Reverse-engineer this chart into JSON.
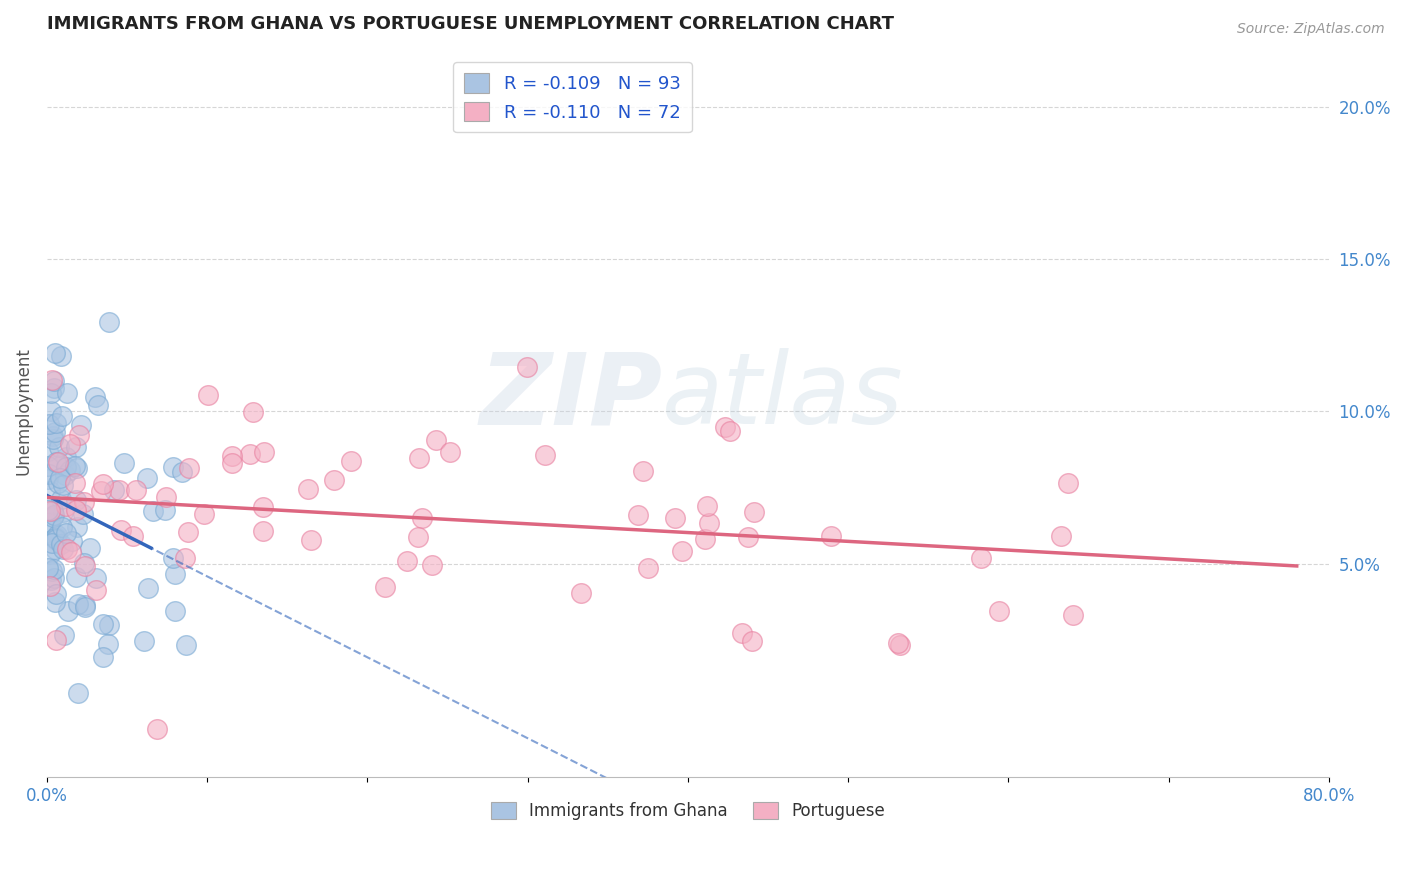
{
  "title": "IMMIGRANTS FROM GHANA VS PORTUGUESE UNEMPLOYMENT CORRELATION CHART",
  "source_text": "Source: ZipAtlas.com",
  "ylabel": "Unemployment",
  "xlim": [
    0.0,
    0.8
  ],
  "ylim": [
    -0.02,
    0.22
  ],
  "xticks": [
    0.0,
    0.1,
    0.2,
    0.3,
    0.4,
    0.5,
    0.6,
    0.7,
    0.8
  ],
  "xticklabels": [
    "0.0%",
    "",
    "",
    "",
    "",
    "",
    "",
    "",
    "80.0%"
  ],
  "yticks_right": [
    0.05,
    0.1,
    0.15,
    0.2
  ],
  "yticklabels_right": [
    "5.0%",
    "10.0%",
    "15.0%",
    "20.0%"
  ],
  "series1_label": "Immigrants from Ghana",
  "series1_R": "-0.109",
  "series1_N": "93",
  "series1_color": "#aac4e2",
  "series1_edge": "#7aaad4",
  "series2_label": "Portuguese",
  "series2_R": "-0.110",
  "series2_N": "72",
  "series2_color": "#f4b0c4",
  "series2_edge": "#e880a0",
  "trend1_color": "#3366bb",
  "trend2_color": "#dd6680",
  "background_color": "#ffffff",
  "watermark": "ZIPatlas",
  "watermark_color_zip": "#c8d4e4",
  "watermark_color_atlas": "#b0c8d8",
  "grid_color": "#cccccc",
  "title_color": "#222222"
}
